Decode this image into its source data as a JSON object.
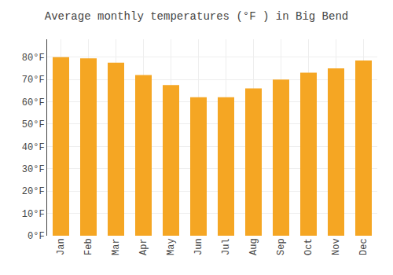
{
  "chart_data": {
    "type": "bar",
    "title": "Average monthly temperatures (°F ) in Big Bend",
    "categories": [
      "Jan",
      "Feb",
      "Mar",
      "Apr",
      "May",
      "Jun",
      "Jul",
      "Aug",
      "Sep",
      "Oct",
      "Nov",
      "Dec"
    ],
    "values": [
      80,
      79.5,
      77.5,
      72,
      67.5,
      62,
      62,
      66,
      70,
      73,
      75,
      78.5
    ],
    "color": "#F5A623",
    "ylim": [
      0,
      88
    ],
    "yticks": [
      {
        "value": 0,
        "label": "0°F"
      },
      {
        "value": 10,
        "label": "10°F"
      },
      {
        "value": 20,
        "label": "20°F"
      },
      {
        "value": 30,
        "label": "30°F"
      },
      {
        "value": 40,
        "label": "40°F"
      },
      {
        "value": 50,
        "label": "50°F"
      },
      {
        "value": 60,
        "label": "60°F"
      },
      {
        "value": 70,
        "label": "70°F"
      },
      {
        "value": 80,
        "label": "80°F"
      }
    ],
    "grid": true
  }
}
